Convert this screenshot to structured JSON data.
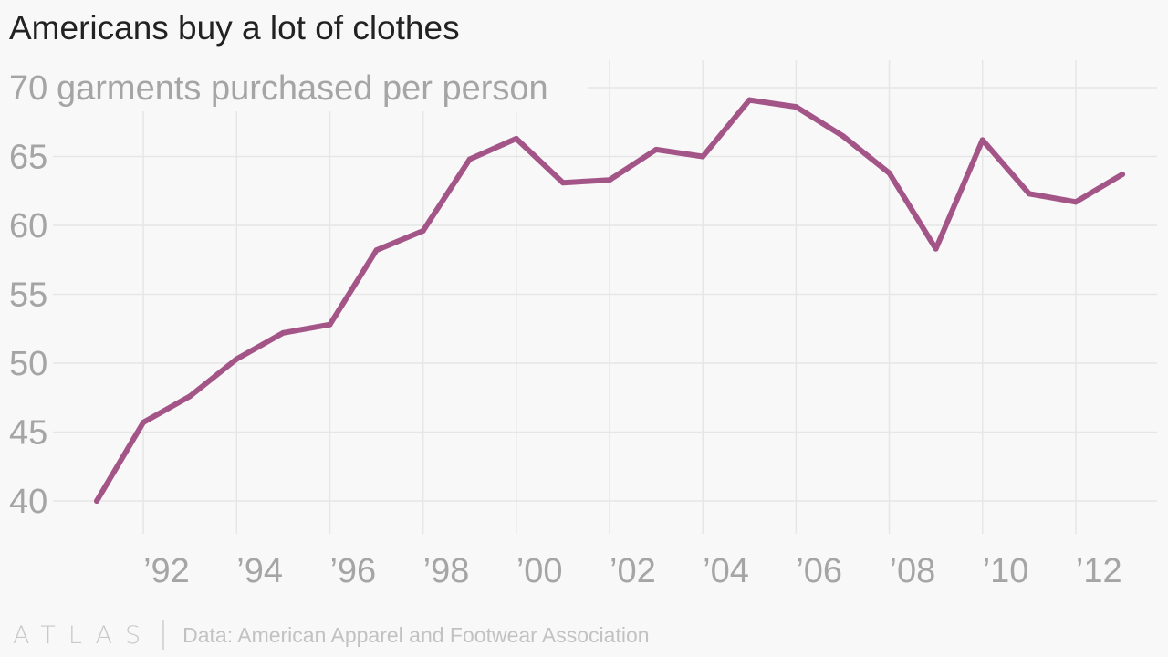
{
  "brand": {
    "logo_text": "ATLAS",
    "source": "Data: American Apparel and Footwear Association"
  },
  "chart_data": {
    "type": "line",
    "title": "Americans buy a lot of clothes",
    "unit_label": "garments purchased per person",
    "xlim": [
      1991,
      2013
    ],
    "ylim": [
      40,
      70
    ],
    "x_ticks": [
      {
        "value": 1992,
        "label": "’92"
      },
      {
        "value": 1994,
        "label": "’94"
      },
      {
        "value": 1996,
        "label": "’96"
      },
      {
        "value": 1998,
        "label": "’98"
      },
      {
        "value": 2000,
        "label": "’00"
      },
      {
        "value": 2002,
        "label": "’02"
      },
      {
        "value": 2004,
        "label": "’04"
      },
      {
        "value": 2006,
        "label": "’06"
      },
      {
        "value": 2008,
        "label": "’08"
      },
      {
        "value": 2010,
        "label": "’10"
      },
      {
        "value": 2012,
        "label": "’12"
      }
    ],
    "y_ticks": [
      {
        "value": 40,
        "label": "40"
      },
      {
        "value": 45,
        "label": "45"
      },
      {
        "value": 50,
        "label": "50"
      },
      {
        "value": 55,
        "label": "55"
      },
      {
        "value": 60,
        "label": "60"
      },
      {
        "value": 65,
        "label": "65"
      },
      {
        "value": 70,
        "label": "70"
      }
    ],
    "grid": true,
    "legend": "none",
    "series": [
      {
        "color": "#a45587",
        "x": [
          1991,
          1992,
          1993,
          1994,
          1995,
          1996,
          1997,
          1998,
          1999,
          2000,
          2001,
          2002,
          2003,
          2004,
          2005,
          2006,
          2007,
          2008,
          2009,
          2010,
          2011,
          2012,
          2013
        ],
        "values": [
          40.0,
          45.7,
          47.6,
          50.3,
          52.2,
          52.8,
          58.2,
          59.6,
          64.8,
          66.3,
          63.1,
          63.3,
          65.5,
          65.0,
          69.1,
          68.6,
          66.5,
          63.8,
          58.3,
          66.2,
          62.3,
          61.7,
          63.7
        ]
      }
    ]
  }
}
